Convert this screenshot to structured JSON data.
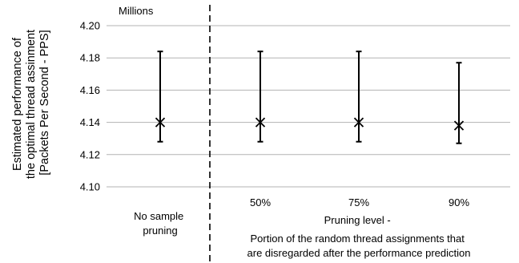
{
  "chart_data": {
    "type": "scatter",
    "unit_label": "Millions",
    "ylabel": "Estimated performance of the optimal thread assinment [Packets Per Second - PPS]",
    "ylabel_lines": [
      "Estimated performance of",
      "the optimal thread assinment",
      "[Packets Per Second - PPS]"
    ],
    "ylim": [
      4.1,
      4.2
    ],
    "yticks": [
      4.1,
      4.12,
      4.14,
      4.16,
      4.18,
      4.2
    ],
    "ytick_labels": [
      "4.10",
      "4.12",
      "4.14",
      "4.16",
      "4.18",
      "4.20"
    ],
    "grid": true,
    "categories": [
      "",
      "50%",
      "75%",
      "90%"
    ],
    "baseline_label_lines": [
      "No sample",
      "pruning"
    ],
    "group_label_lines": [
      "Pruning level -",
      "Portion of the random thread assignments that",
      "are disregarded after the performance prediction"
    ],
    "points": [
      {
        "category": "No sample pruning",
        "value": 4.14,
        "low": 4.128,
        "high": 4.184
      },
      {
        "category": "50%",
        "value": 4.14,
        "low": 4.128,
        "high": 4.184
      },
      {
        "category": "75%",
        "value": 4.14,
        "low": 4.128,
        "high": 4.184
      },
      {
        "category": "90%",
        "value": 4.138,
        "low": 4.127,
        "high": 4.177
      }
    ],
    "colors": {
      "marker": "#000000",
      "grid": "#b3b3b3",
      "axis": "#8c8c8c"
    }
  }
}
